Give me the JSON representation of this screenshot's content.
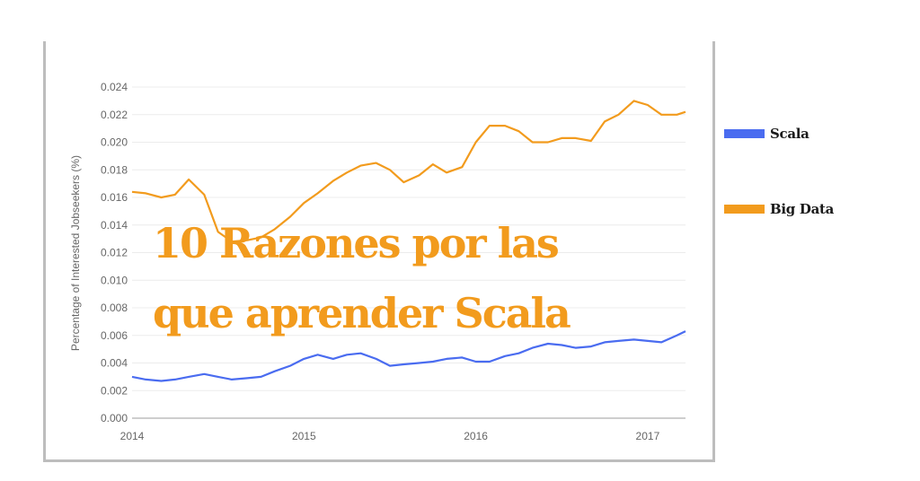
{
  "title": {
    "line1": "10 Razones por las",
    "line2": "que aprender Scala",
    "color": "#f29b1d"
  },
  "legend": [
    {
      "label": "Scala",
      "color": "#4a6cf0"
    },
    {
      "label": "Big Data",
      "color": "#f29b1d"
    }
  ],
  "axes": {
    "ylabel": "Percentage of Interested Jobseekers (%)",
    "yticks": [
      "0.000",
      "0.002",
      "0.004",
      "0.006",
      "0.008",
      "0.010",
      "0.012",
      "0.014",
      "0.016",
      "0.018",
      "0.020",
      "0.022",
      "0.024"
    ],
    "xticks": [
      "2014",
      "2015",
      "2016",
      "2017"
    ]
  },
  "chart_data": {
    "type": "line",
    "title": "10 Razones por las que aprender Scala",
    "xlabel": "",
    "ylabel": "Percentage of Interested Jobseekers (%)",
    "xlim": [
      2014.0,
      2017.22
    ],
    "ylim": [
      0.0,
      0.024
    ],
    "grid": true,
    "legend_position": "right",
    "x_ticks": [
      2014,
      2015,
      2016,
      2017
    ],
    "y_ticks": [
      0.0,
      0.002,
      0.004,
      0.006,
      0.008,
      0.01,
      0.012,
      0.014,
      0.016,
      0.018,
      0.02,
      0.022,
      0.024
    ],
    "x": [
      2014.0,
      2014.08,
      2014.17,
      2014.25,
      2014.33,
      2014.42,
      2014.5,
      2014.58,
      2014.67,
      2014.75,
      2014.83,
      2014.92,
      2015.0,
      2015.08,
      2015.17,
      2015.25,
      2015.33,
      2015.42,
      2015.5,
      2015.58,
      2015.67,
      2015.75,
      2015.83,
      2015.92,
      2016.0,
      2016.08,
      2016.17,
      2016.25,
      2016.33,
      2016.42,
      2016.5,
      2016.58,
      2016.67,
      2016.75,
      2016.83,
      2016.92,
      2017.0,
      2017.08,
      2017.17,
      2017.22
    ],
    "series": [
      {
        "name": "Scala",
        "color": "#4a6cf0",
        "values": [
          0.003,
          0.0028,
          0.0027,
          0.0028,
          0.003,
          0.0032,
          0.003,
          0.0028,
          0.0029,
          0.003,
          0.0034,
          0.0038,
          0.0043,
          0.0046,
          0.0043,
          0.0046,
          0.0047,
          0.0043,
          0.0038,
          0.0039,
          0.004,
          0.0041,
          0.0043,
          0.0044,
          0.0041,
          0.0041,
          0.0045,
          0.0047,
          0.0051,
          0.0054,
          0.0053,
          0.0051,
          0.0052,
          0.0055,
          0.0056,
          0.0057,
          0.0056,
          0.0055,
          0.006,
          0.0063
        ]
      },
      {
        "name": "Big Data",
        "color": "#f29b1d",
        "values": [
          0.0164,
          0.0163,
          0.016,
          0.0162,
          0.0173,
          0.0162,
          0.0135,
          0.0128,
          0.0129,
          0.0131,
          0.0137,
          0.0146,
          0.0156,
          0.0163,
          0.0172,
          0.0178,
          0.0183,
          0.0185,
          0.018,
          0.0171,
          0.0176,
          0.0184,
          0.0178,
          0.0182,
          0.02,
          0.0212,
          0.0212,
          0.0208,
          0.02,
          0.02,
          0.0203,
          0.0203,
          0.0201,
          0.0215,
          0.022,
          0.023,
          0.0227,
          0.022,
          0.022,
          0.0222
        ]
      }
    ]
  }
}
